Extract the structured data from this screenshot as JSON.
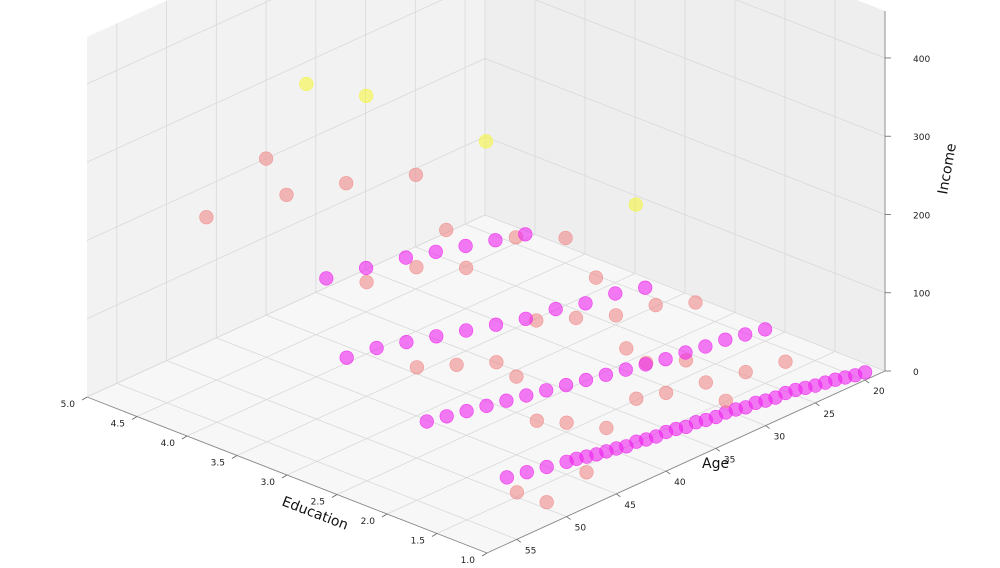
{
  "chart_data": {
    "type": "scatter",
    "projection": "3d",
    "title": "",
    "axes": {
      "x": {
        "label": "Education",
        "ticks": [
          "1.0",
          "1.5",
          "2.0",
          "2.5",
          "3.0",
          "3.5",
          "4.0",
          "4.5",
          "5.0"
        ],
        "range": [
          1,
          5
        ]
      },
      "y": {
        "label": "Age",
        "ticks": [
          "20",
          "25",
          "30",
          "35",
          "40",
          "45",
          "50",
          "55"
        ],
        "range": [
          18,
          58
        ]
      },
      "z": {
        "label": "Income",
        "ticks": [
          "0",
          "100",
          "200",
          "300",
          "400"
        ],
        "range": [
          0,
          460
        ]
      }
    },
    "grid": true,
    "legend": "none",
    "colors": {
      "cluster_pink": "#f08a8a",
      "cluster_magenta": "#ee22ee",
      "cluster_yellow": "#f5f542",
      "pane": "#f2f2f2",
      "grid": "#d9d9d9"
    },
    "points": [
      {
        "x": 1,
        "y": 20,
        "z": 10,
        "c": "m"
      },
      {
        "x": 1,
        "y": 21,
        "z": 12,
        "c": "m"
      },
      {
        "x": 1,
        "y": 22,
        "z": 15,
        "c": "m"
      },
      {
        "x": 1,
        "y": 23,
        "z": 18,
        "c": "m"
      },
      {
        "x": 1,
        "y": 24,
        "z": 20,
        "c": "m"
      },
      {
        "x": 1,
        "y": 25,
        "z": 22,
        "c": "m"
      },
      {
        "x": 1,
        "y": 26,
        "z": 25,
        "c": "m"
      },
      {
        "x": 1,
        "y": 27,
        "z": 28,
        "c": "m"
      },
      {
        "x": 1,
        "y": 28,
        "z": 30,
        "c": "m"
      },
      {
        "x": 1,
        "y": 29,
        "z": 30,
        "c": "m"
      },
      {
        "x": 1,
        "y": 30,
        "z": 32,
        "c": "m"
      },
      {
        "x": 1,
        "y": 31,
        "z": 35,
        "c": "m"
      },
      {
        "x": 1,
        "y": 32,
        "z": 35,
        "c": "m"
      },
      {
        "x": 1,
        "y": 33,
        "z": 38,
        "c": "m"
      },
      {
        "x": 1,
        "y": 34,
        "z": 40,
        "c": "m"
      },
      {
        "x": 1,
        "y": 35,
        "z": 40,
        "c": "m"
      },
      {
        "x": 1,
        "y": 36,
        "z": 42,
        "c": "m"
      },
      {
        "x": 1,
        "y": 37,
        "z": 45,
        "c": "m"
      },
      {
        "x": 1,
        "y": 38,
        "z": 45,
        "c": "m"
      },
      {
        "x": 1,
        "y": 39,
        "z": 48,
        "c": "m"
      },
      {
        "x": 1,
        "y": 40,
        "z": 50,
        "c": "m"
      },
      {
        "x": 1,
        "y": 41,
        "z": 50,
        "c": "m"
      },
      {
        "x": 1,
        "y": 42,
        "z": 52,
        "c": "m"
      },
      {
        "x": 1,
        "y": 43,
        "z": 55,
        "c": "m"
      },
      {
        "x": 1,
        "y": 44,
        "z": 55,
        "c": "m"
      },
      {
        "x": 1,
        "y": 45,
        "z": 58,
        "c": "m"
      },
      {
        "x": 1,
        "y": 46,
        "z": 60,
        "c": "m"
      },
      {
        "x": 1,
        "y": 47,
        "z": 62,
        "c": "m"
      },
      {
        "x": 1,
        "y": 48,
        "z": 65,
        "c": "m"
      },
      {
        "x": 1,
        "y": 49,
        "z": 68,
        "c": "m"
      },
      {
        "x": 1,
        "y": 50,
        "z": 70,
        "c": "m"
      },
      {
        "x": 1,
        "y": 52,
        "z": 75,
        "c": "m"
      },
      {
        "x": 1,
        "y": 54,
        "z": 80,
        "c": "m"
      },
      {
        "x": 1,
        "y": 56,
        "z": 85,
        "c": "m"
      },
      {
        "x": 1,
        "y": 28,
        "z": 70,
        "c": "p"
      },
      {
        "x": 1,
        "y": 32,
        "z": 80,
        "c": "p"
      },
      {
        "x": 1,
        "y": 36,
        "z": 90,
        "c": "p"
      },
      {
        "x": 1,
        "y": 40,
        "z": 100,
        "c": "p"
      },
      {
        "x": 1,
        "y": 43,
        "z": 110,
        "c": "p"
      },
      {
        "x": 1,
        "y": 46,
        "z": 90,
        "c": "p"
      },
      {
        "x": 1,
        "y": 50,
        "z": 120,
        "c": "p"
      },
      {
        "x": 1,
        "y": 53,
        "z": 140,
        "c": "p"
      },
      {
        "x": 1,
        "y": 55,
        "z": 60,
        "c": "p"
      },
      {
        "x": 1,
        "y": 42,
        "z": 150,
        "c": "p"
      },
      {
        "x": 1,
        "y": 38,
        "z": 130,
        "c": "p"
      },
      {
        "x": 1,
        "y": 48,
        "z": 45,
        "c": "p"
      },
      {
        "x": 1,
        "y": 52,
        "z": 30,
        "c": "p"
      },
      {
        "x": 1,
        "y": 34,
        "z": 55,
        "c": "p"
      },
      {
        "x": 1,
        "y": 44,
        "z": 180,
        "c": "p"
      },
      {
        "x": 2,
        "y": 20,
        "z": 15,
        "c": "m"
      },
      {
        "x": 2,
        "y": 22,
        "z": 20,
        "c": "m"
      },
      {
        "x": 2,
        "y": 24,
        "z": 25,
        "c": "m"
      },
      {
        "x": 2,
        "y": 26,
        "z": 28,
        "c": "m"
      },
      {
        "x": 2,
        "y": 28,
        "z": 32,
        "c": "m"
      },
      {
        "x": 2,
        "y": 30,
        "z": 35,
        "c": "m"
      },
      {
        "x": 2,
        "y": 32,
        "z": 40,
        "c": "m"
      },
      {
        "x": 2,
        "y": 34,
        "z": 45,
        "c": "m"
      },
      {
        "x": 2,
        "y": 36,
        "z": 50,
        "c": "m"
      },
      {
        "x": 2,
        "y": 38,
        "z": 55,
        "c": "m"
      },
      {
        "x": 2,
        "y": 40,
        "z": 60,
        "c": "m"
      },
      {
        "x": 2,
        "y": 42,
        "z": 65,
        "c": "m"
      },
      {
        "x": 2,
        "y": 44,
        "z": 70,
        "c": "m"
      },
      {
        "x": 2,
        "y": 46,
        "z": 75,
        "c": "m"
      },
      {
        "x": 2,
        "y": 48,
        "z": 80,
        "c": "m"
      },
      {
        "x": 2,
        "y": 50,
        "z": 85,
        "c": "m"
      },
      {
        "x": 2,
        "y": 52,
        "z": 90,
        "c": "m"
      },
      {
        "x": 2,
        "y": 54,
        "z": 95,
        "c": "m"
      },
      {
        "x": 2,
        "y": 27,
        "z": 90,
        "c": "p"
      },
      {
        "x": 2,
        "y": 31,
        "z": 110,
        "c": "p"
      },
      {
        "x": 2,
        "y": 35,
        "z": 120,
        "c": "p"
      },
      {
        "x": 2,
        "y": 39,
        "z": 140,
        "c": "p"
      },
      {
        "x": 2,
        "y": 43,
        "z": 160,
        "c": "p"
      },
      {
        "x": 2,
        "y": 47,
        "z": 130,
        "c": "p"
      },
      {
        "x": 2,
        "y": 51,
        "z": 150,
        "c": "p"
      },
      {
        "x": 2,
        "y": 55,
        "z": 170,
        "c": "p"
      },
      {
        "x": 2,
        "y": 45,
        "z": 100,
        "c": "p"
      },
      {
        "x": 2,
        "y": 37,
        "z": 180,
        "c": "p"
      },
      {
        "x": 2,
        "y": 33,
        "z": 250,
        "c": "y"
      },
      {
        "x": 3,
        "y": 22,
        "z": 30,
        "c": "m"
      },
      {
        "x": 3,
        "y": 25,
        "z": 40,
        "c": "m"
      },
      {
        "x": 3,
        "y": 28,
        "z": 45,
        "c": "m"
      },
      {
        "x": 3,
        "y": 31,
        "z": 55,
        "c": "m"
      },
      {
        "x": 3,
        "y": 34,
        "z": 60,
        "c": "m"
      },
      {
        "x": 3,
        "y": 37,
        "z": 70,
        "c": "m"
      },
      {
        "x": 3,
        "y": 40,
        "z": 80,
        "c": "m"
      },
      {
        "x": 3,
        "y": 43,
        "z": 90,
        "c": "m"
      },
      {
        "x": 3,
        "y": 46,
        "z": 100,
        "c": "m"
      },
      {
        "x": 3,
        "y": 49,
        "z": 110,
        "c": "m"
      },
      {
        "x": 3,
        "y": 52,
        "z": 115,
        "c": "m"
      },
      {
        "x": 3,
        "y": 30,
        "z": 140,
        "c": "p"
      },
      {
        "x": 3,
        "y": 35,
        "z": 170,
        "c": "p"
      },
      {
        "x": 3,
        "y": 40,
        "z": 160,
        "c": "p"
      },
      {
        "x": 3,
        "y": 45,
        "z": 190,
        "c": "p"
      },
      {
        "x": 3,
        "y": 50,
        "z": 200,
        "c": "p"
      },
      {
        "x": 3,
        "y": 42,
        "z": 220,
        "c": "p"
      },
      {
        "x": 3,
        "y": 38,
        "z": 310,
        "c": "y"
      },
      {
        "x": 4,
        "y": 24,
        "z": 60,
        "c": "m"
      },
      {
        "x": 4,
        "y": 27,
        "z": 70,
        "c": "m"
      },
      {
        "x": 4,
        "y": 30,
        "z": 80,
        "c": "m"
      },
      {
        "x": 4,
        "y": 33,
        "z": 90,
        "c": "m"
      },
      {
        "x": 4,
        "y": 36,
        "z": 100,
        "c": "m"
      },
      {
        "x": 4,
        "y": 40,
        "z": 110,
        "c": "m"
      },
      {
        "x": 4,
        "y": 44,
        "z": 120,
        "c": "m"
      },
      {
        "x": 4,
        "y": 35,
        "z": 200,
        "c": "p"
      },
      {
        "x": 4,
        "y": 42,
        "z": 230,
        "c": "p"
      },
      {
        "x": 4,
        "y": 48,
        "z": 250,
        "c": "p"
      },
      {
        "x": 4,
        "y": 40,
        "z": 330,
        "c": "y"
      },
      {
        "x": 4,
        "y": 46,
        "z": 380,
        "c": "y"
      },
      {
        "x": 5,
        "y": 40,
        "z": 200,
        "c": "p"
      },
      {
        "x": 5,
        "y": 46,
        "z": 160,
        "c": "p"
      }
    ]
  }
}
